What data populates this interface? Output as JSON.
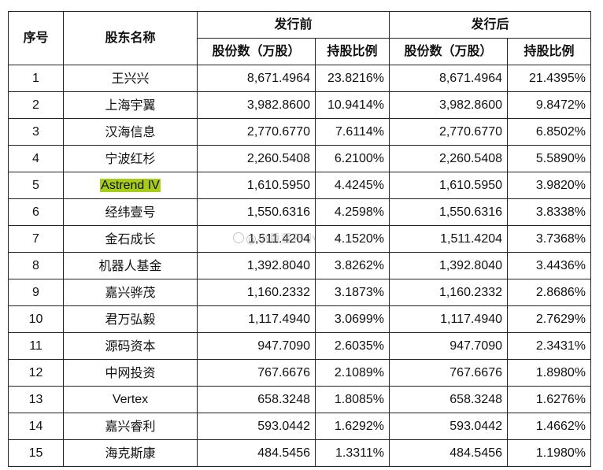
{
  "table": {
    "headers": {
      "seq": "序号",
      "name": "股东名称",
      "before": "发行前",
      "after": "发行后",
      "shares": "股份数（万股）",
      "ratio": "持股比例"
    },
    "rows": [
      {
        "seq": "1",
        "name": "王兴兴",
        "before_shares": "8,671.4964",
        "before_ratio": "23.8216%",
        "after_shares": "8,671.4964",
        "after_ratio": "21.4395%"
      },
      {
        "seq": "2",
        "name": "上海宇翼",
        "before_shares": "3,982.8600",
        "before_ratio": "10.9414%",
        "after_shares": "3,982.8600",
        "after_ratio": "9.8472%"
      },
      {
        "seq": "3",
        "name": "汉海信息",
        "before_shares": "2,770.6770",
        "before_ratio": "7.6114%",
        "after_shares": "2,770.6770",
        "after_ratio": "6.8502%"
      },
      {
        "seq": "4",
        "name": "宁波红杉",
        "before_shares": "2,260.5408",
        "before_ratio": "6.2100%",
        "after_shares": "2,260.5408",
        "after_ratio": "5.5890%"
      },
      {
        "seq": "5",
        "name": "Astrend IV",
        "before_shares": "1,610.5950",
        "before_ratio": "4.4245%",
        "after_shares": "1,610.5950",
        "after_ratio": "3.9820%"
      },
      {
        "seq": "6",
        "name": "经纬壹号",
        "before_shares": "1,550.6316",
        "before_ratio": "4.2598%",
        "after_shares": "1,550.6316",
        "after_ratio": "3.8338%"
      },
      {
        "seq": "7",
        "name": "金石成长",
        "before_shares": "1,511.4204",
        "before_ratio": "4.1520%",
        "after_shares": "1,511.4204",
        "after_ratio": "3.7368%"
      },
      {
        "seq": "8",
        "name": "机器人基金",
        "before_shares": "1,392.8040",
        "before_ratio": "3.8262%",
        "after_shares": "1,392.8040",
        "after_ratio": "3.4436%"
      },
      {
        "seq": "9",
        "name": "嘉兴骅茂",
        "before_shares": "1,160.2332",
        "before_ratio": "3.1873%",
        "after_shares": "1,160.2332",
        "after_ratio": "2.8686%"
      },
      {
        "seq": "10",
        "name": "君万弘毅",
        "before_shares": "1,117.4940",
        "before_ratio": "3.0699%",
        "after_shares": "1,117.4940",
        "after_ratio": "2.7629%"
      },
      {
        "seq": "11",
        "name": "源码资本",
        "before_shares": "947.7090",
        "before_ratio": "2.6035%",
        "after_shares": "947.7090",
        "after_ratio": "2.3431%"
      },
      {
        "seq": "12",
        "name": "中网投资",
        "before_shares": "767.6676",
        "before_ratio": "2.1089%",
        "after_shares": "767.6676",
        "after_ratio": "1.8980%"
      },
      {
        "seq": "13",
        "name": "Vertex",
        "before_shares": "658.3248",
        "before_ratio": "1.8085%",
        "after_shares": "658.3248",
        "after_ratio": "1.6276%"
      },
      {
        "seq": "14",
        "name": "嘉兴睿利",
        "before_shares": "593.0442",
        "before_ratio": "1.6292%",
        "after_shares": "593.0442",
        "after_ratio": "1.4662%"
      },
      {
        "seq": "15",
        "name": "海克斯康",
        "before_shares": "484.5456",
        "before_ratio": "1.3311%",
        "after_shares": "484.5456",
        "after_ratio": "1.1980%"
      }
    ],
    "highlight_color": "#a8cc1a"
  },
  "watermark": {
    "text": "@小重重不小",
    "icon": "weibo-icon"
  }
}
